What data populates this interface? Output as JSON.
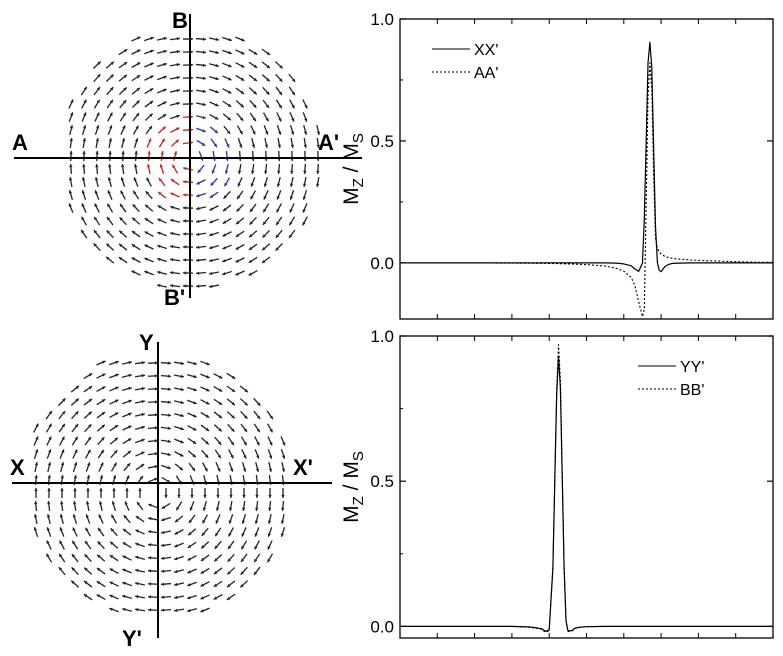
{
  "panels": [
    {
      "id": "top",
      "vector_field": {
        "core_colors": {
          "positive": "#cc2222",
          "negative": "#2233aa"
        },
        "axis_labels": {
          "left": "A",
          "right": "A'",
          "top": "B",
          "bottom": "B'"
        }
      }
    },
    {
      "id": "bottom",
      "vector_field": {
        "axis_labels": {
          "left": "X",
          "right": "X'",
          "top": "Y",
          "bottom": "Y'"
        }
      }
    }
  ],
  "chart_data": [
    {
      "type": "line",
      "ylabel": "M",
      "ylabel_sub": "Z",
      "ylabel_sep": " / M",
      "ylabel_sub2": "S",
      "ylim": [
        -0.23,
        1.0
      ],
      "xlim": [
        0,
        100
      ],
      "yticks": [
        "0.0",
        "0.5",
        "1.0"
      ],
      "ytick_values": [
        0,
        0.5,
        1.0
      ],
      "legend_position": "top-left",
      "x": [
        0,
        20,
        30,
        40,
        45,
        50,
        55,
        58,
        60,
        62,
        63,
        64,
        65,
        65.5,
        66,
        66.5,
        67,
        67.5,
        68,
        68.5,
        69,
        69.5,
        70,
        71,
        72,
        73,
        75,
        78,
        82,
        86,
        90,
        95,
        100
      ],
      "series": [
        {
          "name": "XX'",
          "style": "solid",
          "values": [
            0,
            0,
            0,
            0,
            0,
            0,
            0,
            -0.001,
            -0.004,
            -0.012,
            -0.025,
            -0.035,
            0.0,
            0.18,
            0.5,
            0.82,
            0.905,
            0.8,
            0.48,
            0.15,
            0.0,
            -0.03,
            -0.036,
            -0.015,
            -0.006,
            -0.002,
            -0.001,
            0,
            0,
            0,
            0,
            0,
            0
          ]
        },
        {
          "name": "AA'",
          "style": "dashed",
          "values": [
            0,
            0,
            -0.001,
            -0.002,
            -0.004,
            -0.007,
            -0.013,
            -0.022,
            -0.034,
            -0.06,
            -0.095,
            -0.16,
            -0.22,
            -0.19,
            0.25,
            0.68,
            0.82,
            0.71,
            0.36,
            0.1,
            0.06,
            0.045,
            0.036,
            0.027,
            0.022,
            0.019,
            0.015,
            0.012,
            0.009,
            0.007,
            0.005,
            0.003,
            0.002
          ]
        }
      ]
    },
    {
      "type": "line",
      "ylabel": "M",
      "ylabel_sub": "Z",
      "ylabel_sep": " / M",
      "ylabel_sub2": "S",
      "ylim": [
        -0.04,
        1.0
      ],
      "xlim": [
        0,
        100
      ],
      "yticks": [
        "0.0",
        "0.5",
        "1.0"
      ],
      "ytick_values": [
        0,
        0.5,
        1.0
      ],
      "legend_position": "top-right",
      "x": [
        0,
        10,
        20,
        30,
        35,
        38,
        39,
        40,
        41,
        41.5,
        42,
        42.5,
        43,
        43.5,
        44,
        44.5,
        45,
        46,
        47,
        48,
        50,
        55,
        60,
        70,
        80,
        90,
        100
      ],
      "series": [
        {
          "name": "YY'",
          "style": "solid",
          "values": [
            0,
            0,
            0,
            0,
            -0.002,
            -0.008,
            -0.017,
            -0.012,
            0.2,
            0.5,
            0.8,
            0.93,
            0.82,
            0.5,
            0.2,
            0.02,
            -0.015,
            -0.015,
            -0.006,
            -0.003,
            -0.001,
            0,
            0,
            0,
            0,
            0,
            0
          ]
        },
        {
          "name": "BB'",
          "style": "dashed",
          "values": [
            0,
            0,
            0,
            0,
            -0.003,
            -0.01,
            -0.02,
            -0.015,
            0.21,
            0.52,
            0.82,
            0.97,
            0.85,
            0.52,
            0.21,
            0.02,
            -0.018,
            -0.017,
            -0.007,
            -0.004,
            -0.001,
            0,
            0,
            0,
            0,
            0,
            0
          ]
        }
      ]
    }
  ]
}
